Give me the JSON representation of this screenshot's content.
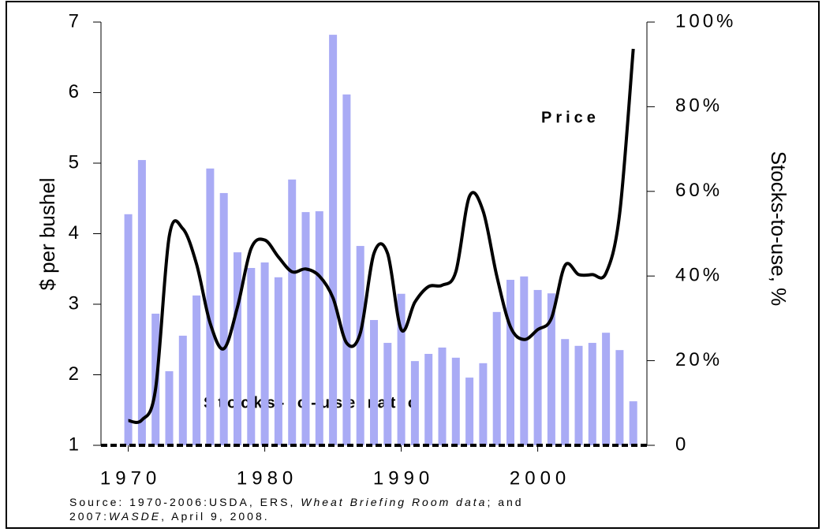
{
  "chart_data": {
    "type": "bar-line",
    "x": [
      1970,
      1971,
      1972,
      1973,
      1974,
      1975,
      1976,
      1977,
      1978,
      1979,
      1980,
      1981,
      1982,
      1983,
      1984,
      1985,
      1986,
      1987,
      1988,
      1989,
      1990,
      1991,
      1992,
      1993,
      1994,
      1995,
      1996,
      1997,
      1998,
      1999,
      2000,
      2001,
      2002,
      2003,
      2004,
      2005,
      2006,
      2007
    ],
    "xlim": [
      1968,
      2008
    ],
    "xticks": [
      1970,
      1980,
      1990,
      2000
    ],
    "ylim": [
      1,
      7
    ],
    "yticks": [
      1,
      2,
      3,
      4,
      5,
      6,
      7
    ],
    "y2lim": [
      0,
      100
    ],
    "y2ticks": [
      0,
      {
        "value": 20,
        "label": "20%"
      },
      {
        "value": 40,
        "label": "40%"
      },
      {
        "value": 60,
        "label": "60%"
      },
      {
        "value": 80,
        "label": "80%"
      },
      {
        "value": 100,
        "label": "100%"
      }
    ],
    "ylabel": "$ per bushel",
    "y2label": "Stocks-to-use, %",
    "series": [
      {
        "name": "Stocks-to-use ratio",
        "type": "bar",
        "axis": "y2",
        "color": "#a9abf5",
        "values": [
          54.6,
          67.4,
          31.1,
          17.5,
          25.9,
          35.4,
          65.4,
          59.6,
          45.6,
          41.9,
          43.2,
          39.7,
          62.8,
          55.1,
          55.3,
          97.0,
          82.9,
          47.1,
          29.6,
          24.2,
          35.8,
          19.9,
          21.6,
          23.1,
          20.7,
          16.0,
          19.4,
          31.5,
          39.1,
          39.9,
          36.7,
          35.9,
          25.1,
          23.5,
          24.2,
          26.6,
          22.5,
          10.4
        ]
      },
      {
        "name": "Price",
        "type": "line",
        "axis": "y",
        "color": "#000000",
        "values": [
          1.35,
          1.36,
          1.8,
          3.96,
          4.07,
          3.57,
          2.73,
          2.37,
          2.96,
          3.79,
          3.91,
          3.67,
          3.46,
          3.5,
          3.4,
          3.09,
          2.45,
          2.59,
          3.72,
          3.72,
          2.64,
          3.03,
          3.25,
          3.27,
          3.46,
          4.53,
          4.32,
          3.4,
          2.68,
          2.5,
          2.64,
          2.8,
          3.55,
          3.42,
          3.42,
          3.44,
          4.28,
          6.62
        ]
      }
    ],
    "source": {
      "line1": [
        "Source: 1970-2006:USDA, ERS, ",
        "Wheat Briefing Room data",
        "; and"
      ],
      "line2": [
        "2007:",
        "WASDE",
        ", April 9, 2008."
      ]
    }
  }
}
